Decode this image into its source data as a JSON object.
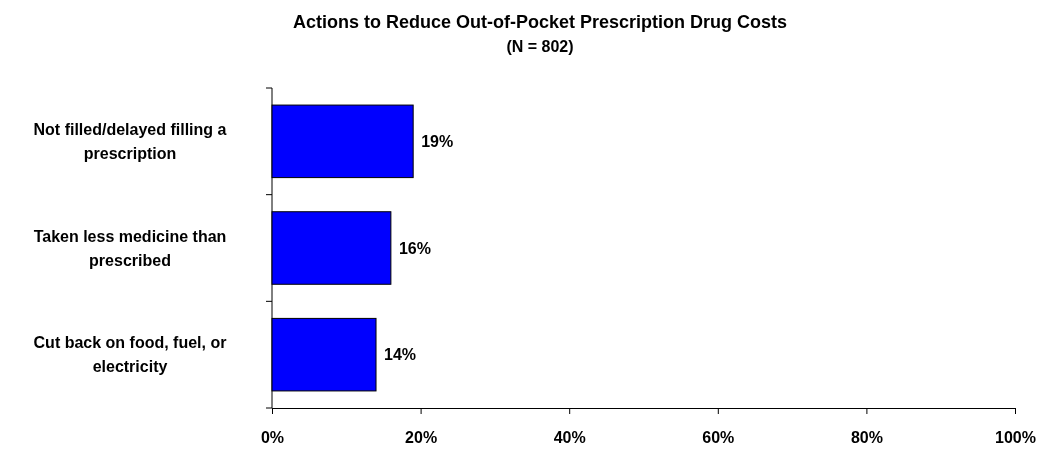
{
  "chart_data": {
    "type": "bar",
    "orientation": "horizontal",
    "title": "Actions to Reduce Out-of-Pocket Prescription Drug Costs",
    "subtitle": "(N = 802)",
    "categories": [
      "Not filled/delayed filling a prescription",
      "Taken less medicine than prescribed",
      "Cut back on food, fuel, or electricity"
    ],
    "values": [
      19,
      16,
      14
    ],
    "value_labels": [
      "19%",
      "16%",
      "14%"
    ],
    "color": "#0000ff",
    "xlim": [
      0,
      100
    ],
    "xticks": [
      {
        "value": 0,
        "label": "0%"
      },
      {
        "value": 20,
        "label": "20%"
      },
      {
        "value": 40,
        "label": "40%"
      },
      {
        "value": 60,
        "label": "60%"
      },
      {
        "value": 80,
        "label": "80%"
      },
      {
        "value": 100,
        "label": "100%"
      }
    ],
    "grid": false
  }
}
